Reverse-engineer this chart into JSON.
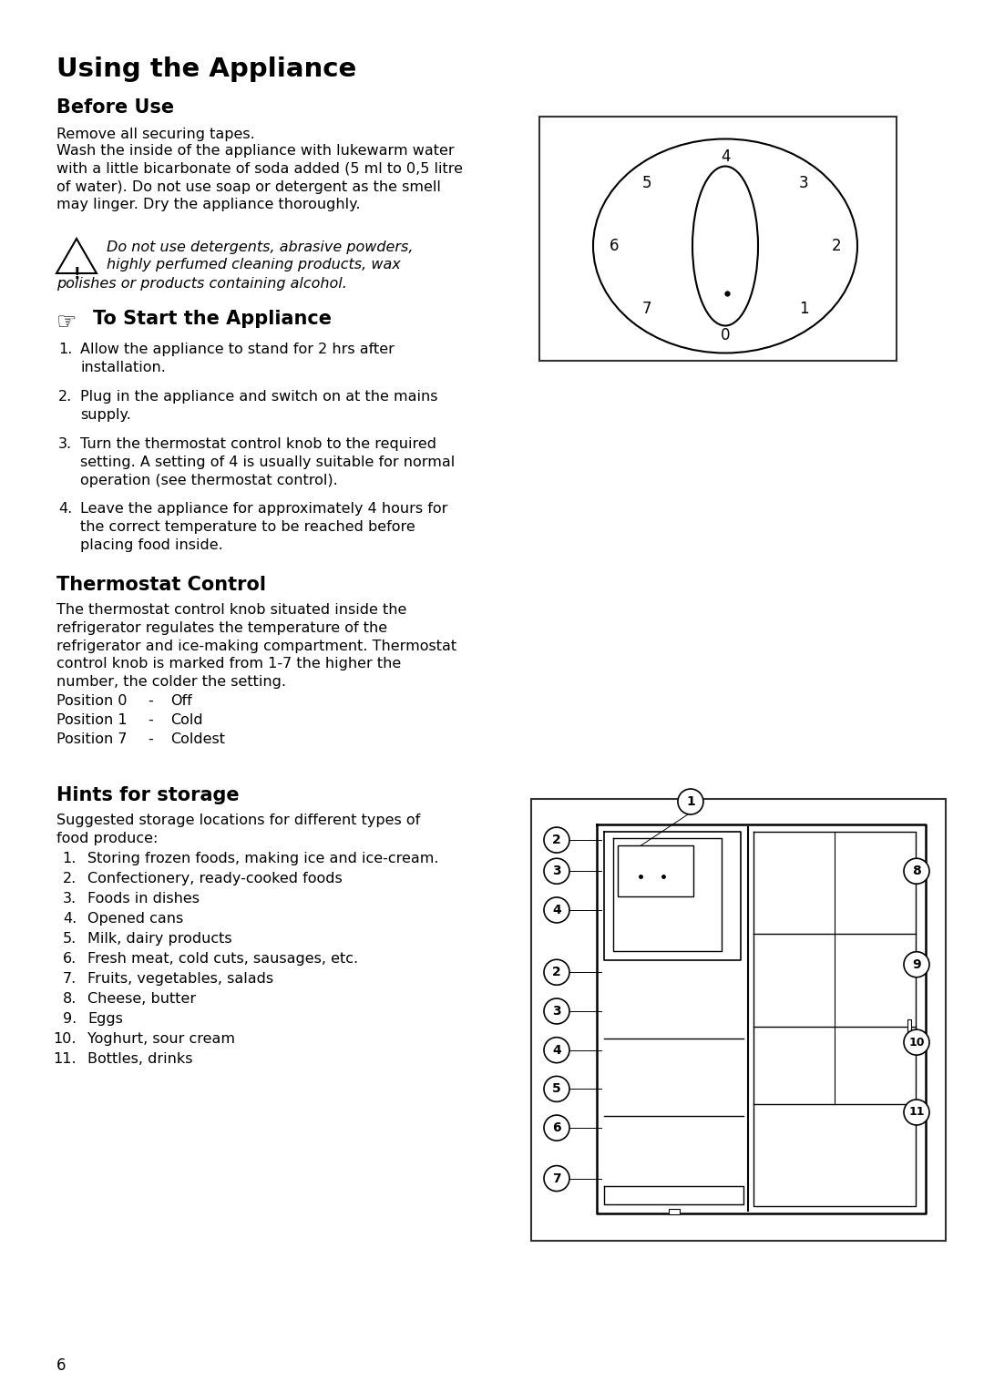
{
  "bg_color": "#ffffff",
  "page_title": "Using the Appliance",
  "s1_title": "Before Use",
  "s1_p1": "Remove all securing tapes.",
  "s1_p2": "Wash the inside of the appliance with lukewarm water\nwith a little bicarbonate of soda added (5 ml to 0,5 litre\nof water). Do not use soap or detergent as the smell\nmay linger. Dry the appliance thoroughly.",
  "warning_line1": "Do not use detergents, abrasive powders,",
  "warning_line2": "highly perfumed cleaning products, wax",
  "warning_line3": "polishes or products containing alcohol.",
  "s2_title": "To Start the Appliance",
  "s2_steps": [
    "Allow the appliance to stand for 2 hrs after\ninstallation.",
    "Plug in the appliance and switch on at the mains\nsupply.",
    "Turn the thermostat control knob to the required\nsetting. A setting of 4 is usually suitable for normal\noperation (see thermostat control).",
    "Leave the appliance for approximately 4 hours for\nthe correct temperature to be reached before\nplacing food inside."
  ],
  "s3_title": "Thermostat Control",
  "s3_body": "The thermostat control knob situated inside the\nrefrigerator regulates the temperature of the\nrefrigerator and ice-making compartment. Thermostat\ncontrol knob is marked from 1-7 the higher the\nnumber, the colder the setting.",
  "s3_positions": [
    [
      "Position 0",
      "-",
      "Off"
    ],
    [
      "Position 1",
      "-",
      "Cold"
    ],
    [
      "Position 7",
      "-",
      "Coldest"
    ]
  ],
  "s4_title": "Hints for storage",
  "s4_intro": "Suggested storage locations for different types of\nfood produce:",
  "s4_items": [
    "Storing frozen foods, making ice and ice-cream.",
    "Confectionery, ready-cooked foods",
    "Foods in dishes",
    "Opened cans",
    "Milk, dairy products",
    "Fresh meat, cold cuts, sausages, etc.",
    "Fruits, vegetables, salads",
    "Cheese, butter",
    "Eggs",
    "Yoghurt, sour cream",
    "Bottles, drinks"
  ],
  "page_num": "6",
  "dial_numbers": [
    "0",
    "1",
    "2",
    "3",
    "4",
    "5",
    "6",
    "7"
  ],
  "dial_angles_deg": [
    90,
    45,
    0,
    -45,
    -90,
    -135,
    180,
    135
  ],
  "left_callout_nums": [
    "2",
    "3",
    "4",
    "2",
    "3",
    "4",
    "5",
    "6",
    "7"
  ],
  "right_callout_nums": [
    "8",
    "9",
    "10",
    "11"
  ]
}
